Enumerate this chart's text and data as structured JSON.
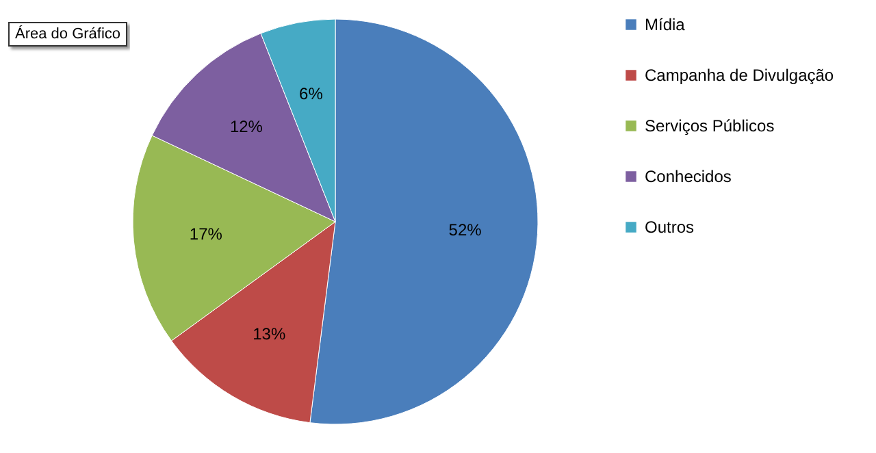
{
  "chart_data": {
    "type": "pie",
    "categories": [
      "Mídia",
      "Campanha de Divulgação",
      "Serviços Públicos",
      "Conhecidos",
      "Outros"
    ],
    "values": [
      52,
      13,
      17,
      12,
      6
    ],
    "colors": [
      "#4a7ebb",
      "#be4b48",
      "#98b954",
      "#7d5fa0",
      "#46aac5"
    ],
    "value_labels": [
      "52%",
      "13%",
      "17%",
      "12%",
      "6%"
    ],
    "legend": "right",
    "annotations": [
      "Área do Gráfico"
    ]
  }
}
